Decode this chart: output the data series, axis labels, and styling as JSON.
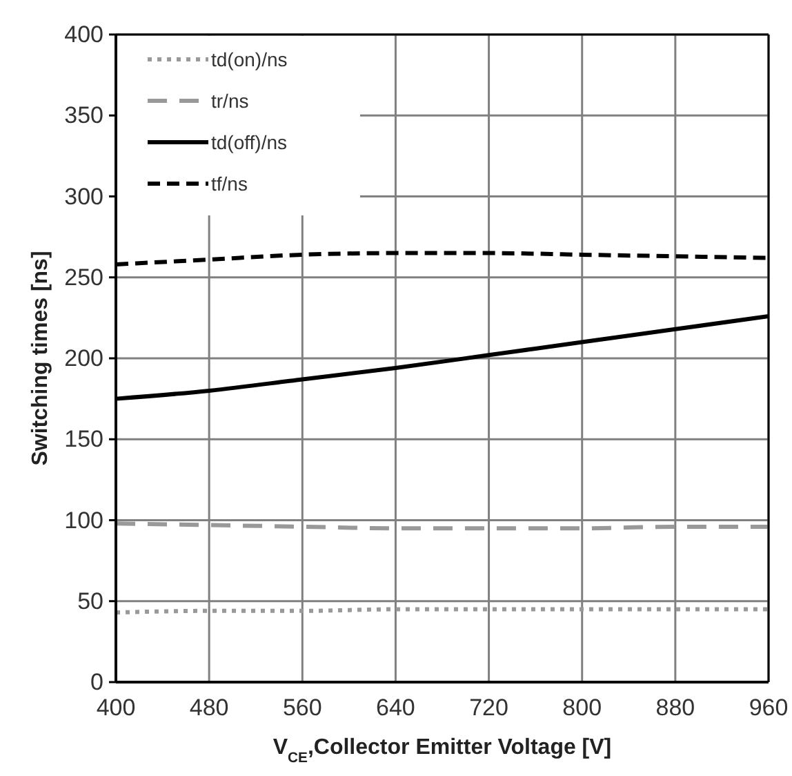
{
  "chart_data": {
    "type": "line",
    "xlabel": "V$_{CE}$,Collector Emitter Voltage [V]",
    "ylabel": "Switching times [ns]",
    "x": [
      400,
      480,
      560,
      640,
      720,
      800,
      880,
      960
    ],
    "series": [
      {
        "name": "td(on)/ns",
        "color": "#999999",
        "line_style": "dotted",
        "values": [
          43,
          44,
          44,
          45,
          45,
          45,
          45,
          45
        ]
      },
      {
        "name": "tr/ns",
        "color": "#999999",
        "line_style": "dashed",
        "values": [
          98,
          97,
          96,
          95,
          95,
          95,
          96,
          96
        ]
      },
      {
        "name": "td(off)/ns",
        "color": "#000000",
        "line_style": "solid",
        "values": [
          175,
          180,
          187,
          194,
          202,
          210,
          218,
          226
        ]
      },
      {
        "name": "tf/ns",
        "color": "#000000",
        "line_style": "dashed",
        "values": [
          258,
          261,
          264,
          265,
          265,
          264,
          263,
          262
        ]
      }
    ],
    "xlim": [
      400,
      960
    ],
    "xticks": [
      400,
      480,
      560,
      640,
      720,
      800,
      880,
      960
    ],
    "ylim": [
      0,
      400
    ],
    "yticks": [
      0,
      50,
      100,
      150,
      200,
      250,
      300,
      350,
      400
    ],
    "grid": true,
    "legend": "top left",
    "marker": "none"
  }
}
